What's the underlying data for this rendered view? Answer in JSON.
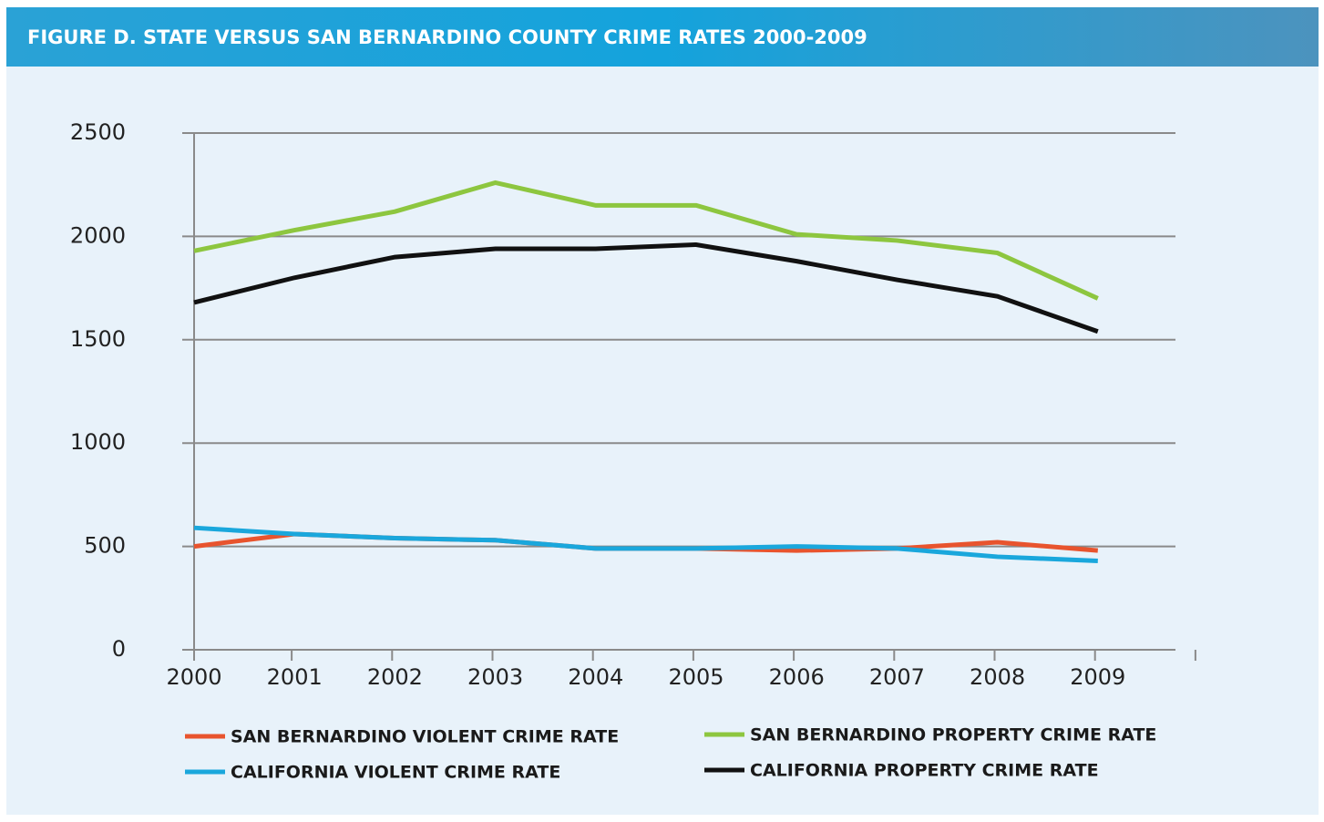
{
  "chart_data": {
    "type": "line",
    "title": "FIGURE D. STATE VERSUS SAN BERNARDINO COUNTY CRIME RATES 2000-2009",
    "categories": [
      "2000",
      "2001",
      "2002",
      "2003",
      "2004",
      "2005",
      "2006",
      "2007",
      "2008",
      "2009"
    ],
    "series": [
      {
        "name": "SAN BERNARDINO VIOLENT CRIME RATE",
        "color": "#e8542e",
        "values": [
          500,
          560,
          540,
          530,
          490,
          490,
          480,
          490,
          520,
          480
        ]
      },
      {
        "name": "SAN BERNARDINO PROPERTY CRIME RATE",
        "color": "#8dc63f",
        "values": [
          1930,
          2030,
          2120,
          2260,
          2150,
          2150,
          2010,
          1980,
          1920,
          1700
        ]
      },
      {
        "name": "CALIFORNIA VIOLENT CRIME RATE",
        "color": "#1aa7dc",
        "values": [
          590,
          560,
          540,
          530,
          490,
          490,
          500,
          490,
          450,
          430
        ]
      },
      {
        "name": "CALIFORNIA PROPERTY CRIME RATE",
        "color": "#111111",
        "values": [
          1680,
          1800,
          1900,
          1940,
          1940,
          1960,
          1880,
          1790,
          1710,
          1540
        ]
      }
    ],
    "ylim": [
      0,
      2500
    ],
    "yticks": [
      0,
      500,
      1000,
      1500,
      2000,
      2500
    ],
    "grid": true
  }
}
